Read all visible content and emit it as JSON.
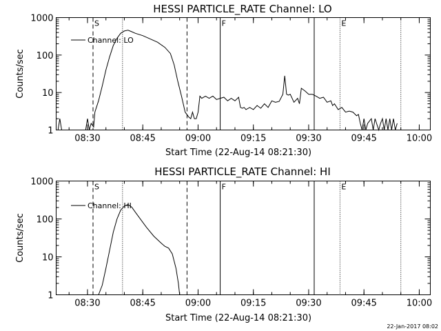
{
  "footer_stamp": "22-Jan-2017 08:02",
  "chart_data": [
    {
      "type": "line",
      "title": "HESSI PARTICLE_RATE Channel: LO",
      "xlabel": "Start Time (22-Aug-14 08:21:30)",
      "ylabel": "Counts/sec",
      "yscale": "log",
      "ylim": [
        1,
        1000
      ],
      "xlim": [
        "08:21:30",
        "10:03:00"
      ],
      "x_ticks": [
        "08:30",
        "08:45",
        "09:00",
        "09:15",
        "09:30",
        "09:45",
        "10:00"
      ],
      "y_ticks": [
        "1",
        "10",
        "100",
        "1000"
      ],
      "legend": {
        "label": "Channel: LO",
        "placement": "top-left"
      },
      "markers": [
        {
          "label": "S",
          "time": "08:31:30",
          "style": "dashed"
        },
        {
          "label": "",
          "time": "08:39:30",
          "style": "dotted"
        },
        {
          "label": "",
          "time": "08:57:00",
          "style": "dashed"
        },
        {
          "label": "F",
          "time": "09:06:00",
          "style": "solid"
        },
        {
          "label": "",
          "time": "09:31:30",
          "style": "solid"
        },
        {
          "label": "E",
          "time": "09:38:30",
          "style": "dotted"
        },
        {
          "label": "",
          "time": "09:55:00",
          "style": "dotted"
        }
      ],
      "series": [
        {
          "name": "Channel: LO",
          "x": [
            "08:22:00",
            "08:22:30",
            "08:23:00",
            "08:29:30",
            "08:30:00",
            "08:30:30",
            "08:31:00",
            "08:31:40",
            "08:32:00",
            "08:33:00",
            "08:34:00",
            "08:35:00",
            "08:36:00",
            "08:37:00",
            "08:38:00",
            "08:39:00",
            "08:40:00",
            "08:41:00",
            "08:42:00",
            "08:43:00",
            "08:45:00",
            "08:47:00",
            "08:49:00",
            "08:51:00",
            "08:52:30",
            "08:53:30",
            "08:54:30",
            "08:55:30",
            "08:56:30",
            "08:57:30",
            "08:58:00",
            "08:58:30",
            "08:59:00",
            "08:59:30",
            "09:00:00",
            "09:00:30",
            "09:01:00",
            "09:02:00",
            "09:03:00",
            "09:04:00",
            "09:05:00",
            "09:06:00",
            "09:07:00",
            "09:08:00",
            "09:09:00",
            "09:10:00",
            "09:11:00",
            "09:11:30",
            "09:12:00",
            "09:12:30",
            "09:13:00",
            "09:14:00",
            "09:15:00",
            "09:16:00",
            "09:17:00",
            "09:18:00",
            "09:19:00",
            "09:20:00",
            "09:21:00",
            "09:22:00",
            "09:23:00",
            "09:23:30",
            "09:24:00",
            "09:24:30",
            "09:25:00",
            "09:26:00",
            "09:27:00",
            "09:27:30",
            "09:28:00",
            "09:29:00",
            "09:30:00",
            "09:31:00",
            "09:32:00",
            "09:33:00",
            "09:34:00",
            "09:35:00",
            "09:36:00",
            "09:36:30",
            "09:37:00",
            "09:38:00",
            "09:39:00",
            "09:40:00",
            "09:41:00",
            "09:42:00",
            "09:43:00",
            "09:43:30",
            "09:44:00",
            "09:44:30",
            "09:45:00",
            "09:45:30",
            "09:46:00",
            "09:47:00",
            "09:47:30",
            "09:48:00",
            "09:49:00",
            "09:49:30",
            "09:50:00",
            "09:50:30",
            "09:51:00",
            "09:51:30",
            "09:52:00",
            "09:52:30",
            "09:53:00",
            "09:53:30",
            "09:54:00"
          ],
          "y": [
            1,
            2,
            1,
            1,
            2,
            1,
            1.5,
            1.2,
            3,
            6,
            15,
            40,
            90,
            180,
            280,
            380,
            440,
            460,
            420,
            380,
            330,
            270,
            220,
            160,
            110,
            55,
            20,
            8,
            3,
            2.2,
            2,
            3,
            2,
            2,
            3,
            8,
            7,
            8,
            7,
            8,
            6.5,
            7,
            7.5,
            6,
            7,
            6,
            7.5,
            4,
            3.8,
            4,
            3.5,
            4,
            3.5,
            4.5,
            3.8,
            5,
            4,
            6,
            5.5,
            5.8,
            9,
            28,
            9,
            8.5,
            9,
            5.5,
            7,
            5,
            13,
            11,
            9,
            9,
            8,
            7,
            7.5,
            5.5,
            6,
            4.5,
            5,
            3.5,
            4,
            3,
            3.2,
            3,
            2.4,
            2.6,
            1.5,
            1,
            2,
            1,
            1.5,
            2,
            1,
            2,
            1,
            1.5,
            2,
            1,
            2,
            1,
            2,
            1,
            2,
            1,
            1.5
          ]
        }
      ]
    },
    {
      "type": "line",
      "title": "HESSI PARTICLE_RATE Channel: HI",
      "xlabel": "Start Time (22-Aug-14 08:21:30)",
      "ylabel": "Counts/sec",
      "yscale": "log",
      "ylim": [
        1,
        1000
      ],
      "xlim": [
        "08:21:30",
        "10:03:00"
      ],
      "x_ticks": [
        "08:30",
        "08:45",
        "09:00",
        "09:15",
        "09:30",
        "09:45",
        "10:00"
      ],
      "y_ticks": [
        "1",
        "10",
        "100",
        "1000"
      ],
      "legend": {
        "label": "Channel: HI",
        "placement": "top-left"
      },
      "markers": [
        {
          "label": "S",
          "time": "08:31:30",
          "style": "dashed"
        },
        {
          "label": "",
          "time": "08:39:30",
          "style": "dotted"
        },
        {
          "label": "",
          "time": "08:57:00",
          "style": "dashed"
        },
        {
          "label": "F",
          "time": "09:06:00",
          "style": "solid"
        },
        {
          "label": "",
          "time": "09:31:30",
          "style": "solid"
        },
        {
          "label": "E",
          "time": "09:38:30",
          "style": "dotted"
        },
        {
          "label": "",
          "time": "09:55:00",
          "style": "dotted"
        }
      ],
      "series": [
        {
          "name": "Channel: HI",
          "x": [
            "08:33:00",
            "08:34:00",
            "08:35:00",
            "08:36:00",
            "08:37:00",
            "08:38:00",
            "08:39:00",
            "08:40:00",
            "08:41:00",
            "08:42:00",
            "08:43:00",
            "08:44:00",
            "08:46:00",
            "08:48:00",
            "08:50:00",
            "08:51:00",
            "08:52:00",
            "08:53:00",
            "08:54:00",
            "08:54:40",
            "08:55:00"
          ],
          "y": [
            1,
            1.8,
            5,
            15,
            45,
            100,
            170,
            220,
            240,
            205,
            150,
            110,
            60,
            35,
            23,
            19,
            17,
            12,
            5,
            2,
            1
          ]
        }
      ]
    }
  ]
}
